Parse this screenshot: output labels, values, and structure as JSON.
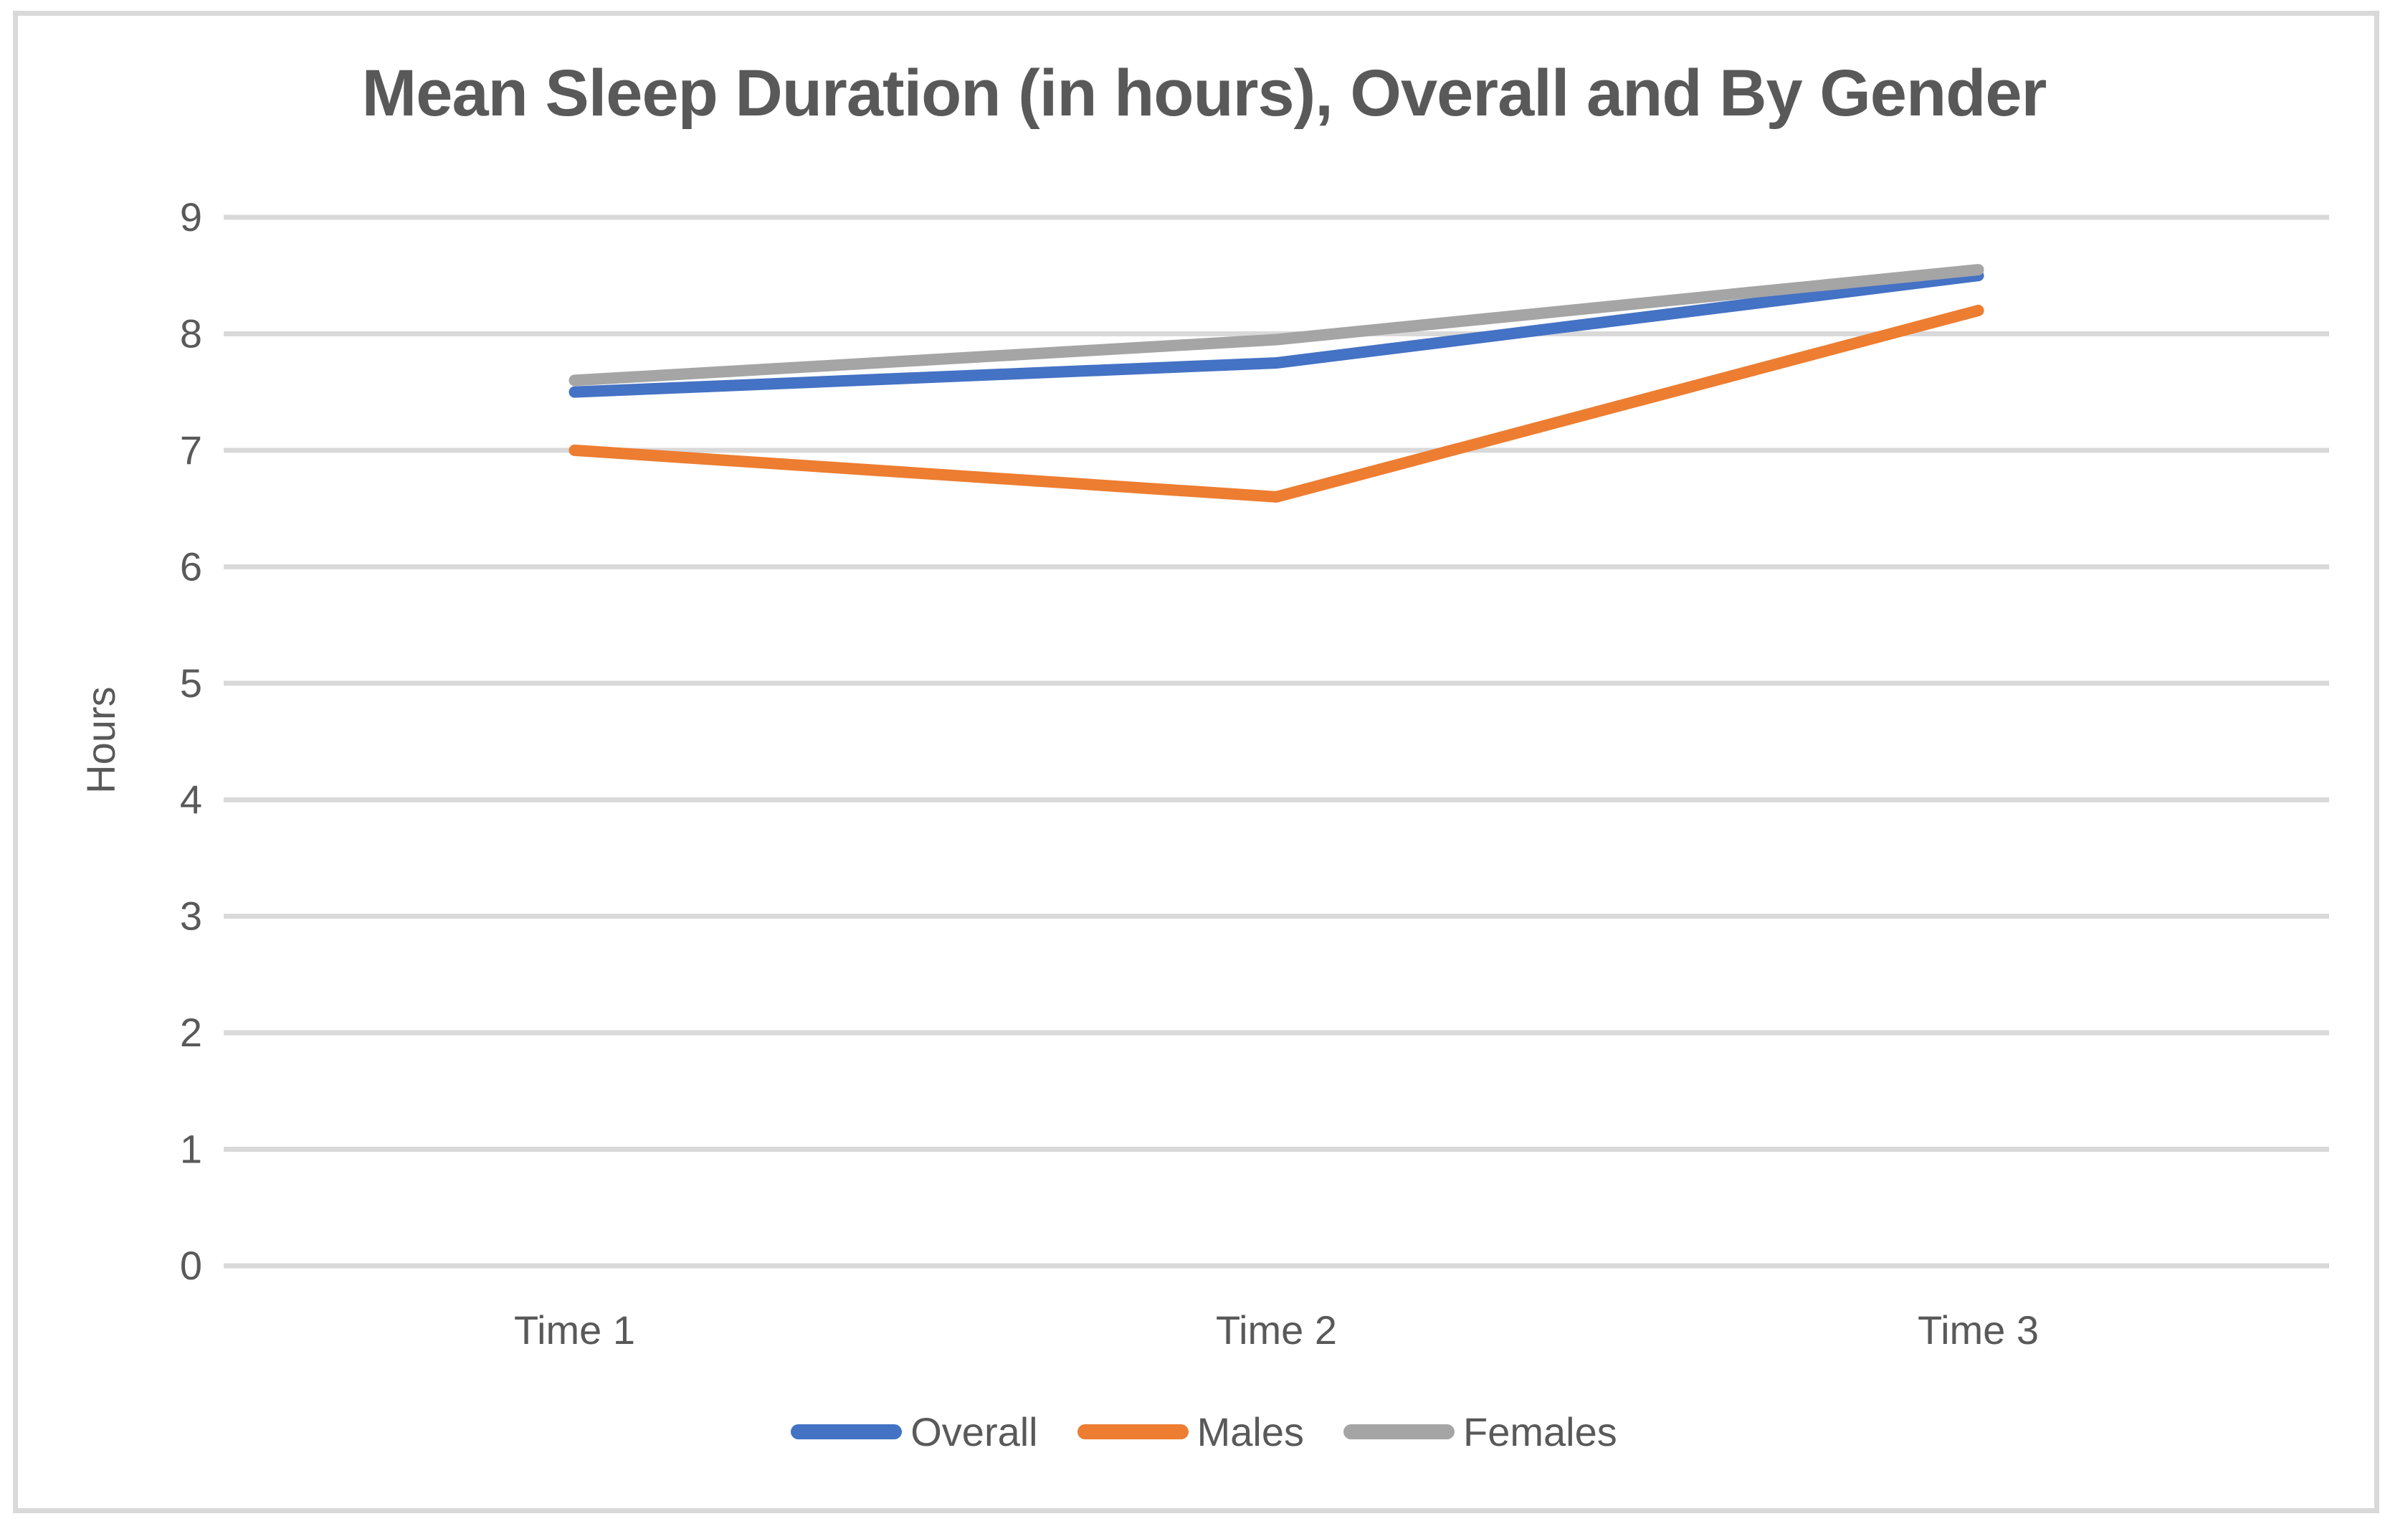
{
  "chart_data": {
    "type": "line",
    "title": "Mean Sleep Duration (in hours), Overall and By Gender",
    "ylabel": "Hours",
    "xlabel": "",
    "categories": [
      "Time 1",
      "Time 2",
      "Time 3"
    ],
    "series": [
      {
        "name": "Overall",
        "color": "#4472C4",
        "values": [
          7.5,
          7.75,
          8.5
        ]
      },
      {
        "name": "Males",
        "color": "#ED7D31",
        "values": [
          7.0,
          6.6,
          8.2
        ]
      },
      {
        "name": "Females",
        "color": "#A5A5A5",
        "values": [
          7.6,
          7.95,
          8.55
        ]
      }
    ],
    "ylim": [
      0,
      9
    ],
    "yticks": [
      0,
      1,
      2,
      3,
      4,
      5,
      6,
      7,
      8,
      9
    ],
    "grid": "horizontal",
    "grid_color": "#D9D9D9",
    "frame_color": "#D9D9D9",
    "text_color": "#595959",
    "legend_position": "bottom"
  }
}
